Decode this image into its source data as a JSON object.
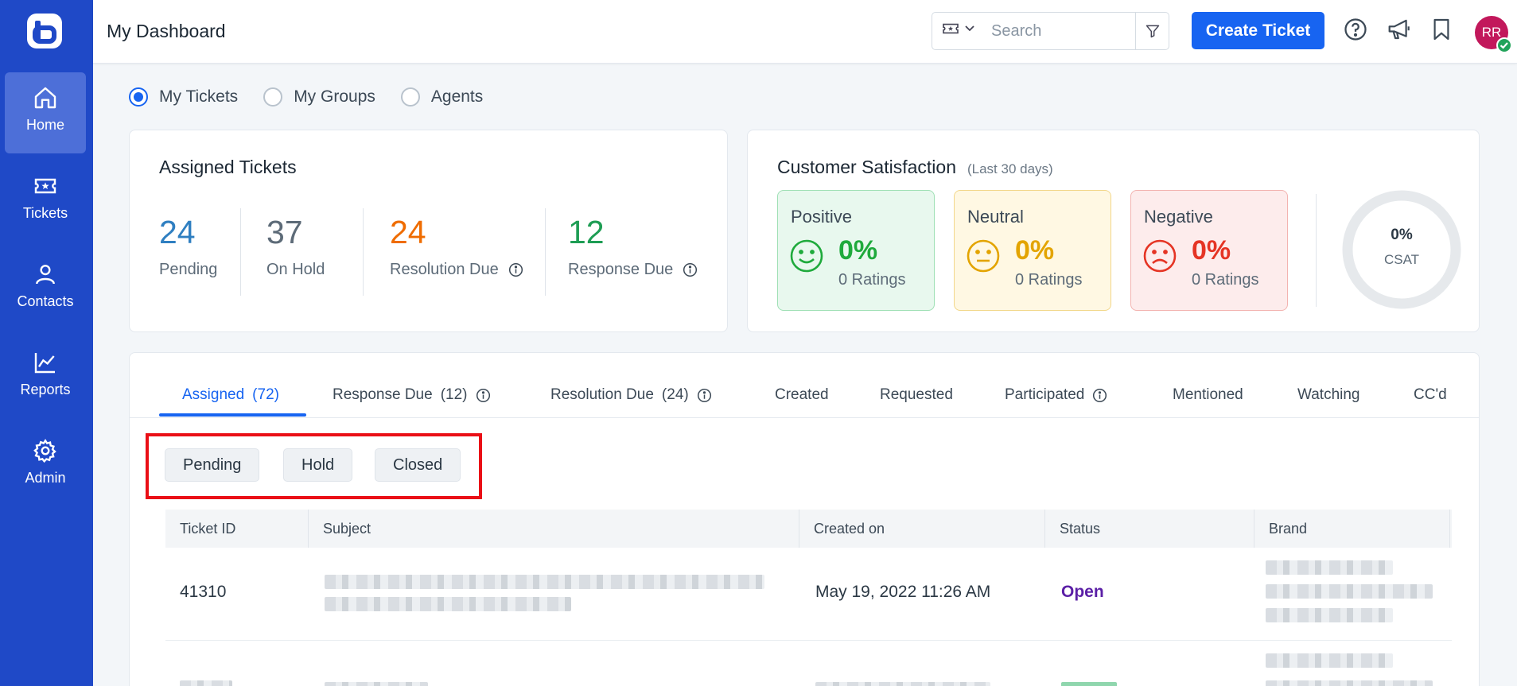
{
  "sidebar": {
    "logo_icon": "logo-icon",
    "items": [
      {
        "label": "Home",
        "icon": "home-icon",
        "active": true
      },
      {
        "label": "Tickets",
        "icon": "ticket-icon",
        "active": false
      },
      {
        "label": "Contacts",
        "icon": "person-icon",
        "active": false
      },
      {
        "label": "Reports",
        "icon": "chart-icon",
        "active": false
      },
      {
        "label": "Admin",
        "icon": "gear-icon",
        "active": false
      }
    ]
  },
  "header": {
    "title": "My Dashboard",
    "search_placeholder": "Search",
    "create_label": "Create Ticket",
    "avatar_initials": "RR"
  },
  "view_options": [
    {
      "label": "My Tickets",
      "checked": true
    },
    {
      "label": "My Groups",
      "checked": false
    },
    {
      "label": "Agents",
      "checked": false
    }
  ],
  "assigned": {
    "title": "Assigned Tickets",
    "stats": [
      {
        "value": "24",
        "label": "Pending",
        "color": "#2f7fc1"
      },
      {
        "value": "37",
        "label": "On Hold",
        "color": "#5d6b78"
      },
      {
        "value": "24",
        "label": "Resolution Due",
        "color": "#ef6c00"
      },
      {
        "value": "12",
        "label": "Response Due",
        "color": "#1e9d54"
      }
    ]
  },
  "csat": {
    "title": "Customer Satisfaction",
    "period": "(Last 30 days)",
    "boxes": [
      {
        "name": "Positive",
        "pct": "0%",
        "ratings": "0 Ratings",
        "color": "#1faa3c"
      },
      {
        "name": "Neutral",
        "pct": "0%",
        "ratings": "0 Ratings",
        "color": "#e3a400"
      },
      {
        "name": "Negative",
        "pct": "0%",
        "ratings": "0 Ratings",
        "color": "#e53424"
      }
    ],
    "gauge_value": "0%",
    "gauge_label": "CSAT",
    "gauge_fraction": 0
  },
  "tabs": [
    {
      "label": "Assigned",
      "count": "(72)",
      "info": false,
      "active": true
    },
    {
      "label": "Response Due",
      "count": "(12)",
      "info": true,
      "active": false
    },
    {
      "label": "Resolution Due",
      "count": "(24)",
      "info": true,
      "active": false
    },
    {
      "label": "Created",
      "count": "",
      "info": false,
      "active": false
    },
    {
      "label": "Requested",
      "count": "",
      "info": false,
      "active": false
    },
    {
      "label": "Participated",
      "count": "",
      "info": true,
      "active": false
    },
    {
      "label": "Mentioned",
      "count": "",
      "info": false,
      "active": false
    },
    {
      "label": "Watching",
      "count": "",
      "info": false,
      "active": false
    },
    {
      "label": "CC'd",
      "count": "",
      "info": false,
      "active": false
    }
  ],
  "filters": [
    "Pending",
    "Hold",
    "Closed"
  ],
  "table": {
    "columns": [
      "Ticket ID",
      "Subject",
      "Created on",
      "Status",
      "Brand"
    ],
    "rows": [
      {
        "id": "41310",
        "created": "May 19, 2022 11:26 AM",
        "status": "Open"
      }
    ]
  }
}
